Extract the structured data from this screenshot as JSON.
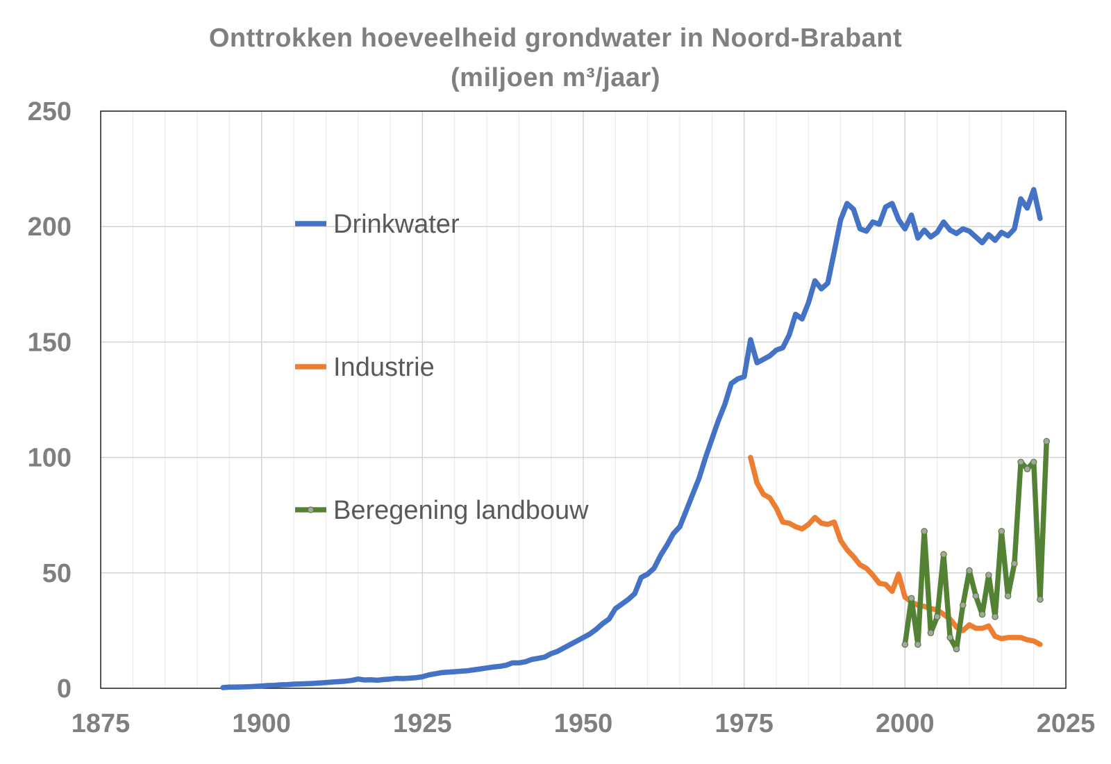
{
  "chart_data": {
    "type": "line",
    "title": "Onttrokken hoeveelheid grondwater in Noord-Brabant",
    "subtitle": "(miljoen m³/jaar)",
    "xlabel": "",
    "ylabel": "",
    "xlim": [
      1875,
      2025
    ],
    "ylim": [
      0,
      250
    ],
    "x_ticks": [
      1875,
      1900,
      1925,
      1950,
      1975,
      2000,
      2025
    ],
    "y_ticks": [
      0,
      50,
      100,
      150,
      200,
      250
    ],
    "grid": true,
    "legend": "inside-left",
    "series": [
      {
        "name": "Drinkwater",
        "color": "#4472c4",
        "markers": false,
        "x": [
          1894,
          1895,
          1896,
          1897,
          1898,
          1899,
          1900,
          1901,
          1902,
          1903,
          1904,
          1905,
          1906,
          1907,
          1908,
          1909,
          1910,
          1911,
          1912,
          1913,
          1914,
          1915,
          1916,
          1917,
          1918,
          1919,
          1920,
          1921,
          1922,
          1923,
          1924,
          1925,
          1926,
          1927,
          1928,
          1929,
          1930,
          1931,
          1932,
          1933,
          1934,
          1935,
          1936,
          1937,
          1938,
          1939,
          1940,
          1941,
          1942,
          1943,
          1944,
          1945,
          1946,
          1947,
          1948,
          1949,
          1950,
          1951,
          1952,
          1953,
          1954,
          1955,
          1956,
          1957,
          1958,
          1959,
          1960,
          1961,
          1962,
          1963,
          1964,
          1965,
          1966,
          1967,
          1968,
          1969,
          1970,
          1971,
          1972,
          1973,
          1974,
          1975,
          1976,
          1977,
          1978,
          1979,
          1980,
          1981,
          1982,
          1983,
          1984,
          1985,
          1986,
          1987,
          1988,
          1989,
          1990,
          1991,
          1992,
          1993,
          1994,
          1995,
          1996,
          1997,
          1998,
          1999,
          2000,
          2001,
          2002,
          2003,
          2004,
          2005,
          2006,
          2007,
          2008,
          2009,
          2010,
          2011,
          2012,
          2013,
          2014,
          2015,
          2016,
          2017,
          2018,
          2019,
          2020,
          2021
        ],
        "values": [
          0.3,
          0.5,
          0.5,
          0.6,
          0.7,
          0.8,
          1.0,
          1.2,
          1.3,
          1.5,
          1.6,
          1.8,
          1.9,
          2.0,
          2.1,
          2.3,
          2.5,
          2.7,
          2.9,
          3.1,
          3.4,
          4.0,
          3.6,
          3.7,
          3.5,
          3.8,
          4.0,
          4.3,
          4.2,
          4.4,
          4.6,
          5.0,
          5.8,
          6.3,
          6.8,
          7.0,
          7.2,
          7.4,
          7.6,
          8.0,
          8.4,
          8.8,
          9.2,
          9.5,
          10.0,
          11.0,
          11.0,
          11.5,
          12.5,
          13.0,
          13.5,
          15.0,
          16.0,
          17.5,
          19.0,
          20.5,
          22.0,
          23.5,
          25.5,
          28.0,
          30.0,
          34.5,
          36.5,
          38.5,
          41.0,
          48.0,
          49.5,
          52.0,
          57.5,
          62.0,
          67.0,
          70.0,
          77.0,
          84.0,
          91.0,
          100.0,
          108.0,
          116.0,
          123.0,
          132.0,
          134.0,
          135.0,
          151.0,
          141.0,
          142.5,
          144.0,
          146.5,
          147.5,
          153.0,
          162.0,
          160.0,
          167.0,
          176.5,
          173.0,
          175.5,
          189.0,
          203.0,
          210.0,
          207.5,
          199.0,
          198.0,
          202.0,
          201.0,
          208.5,
          210.0,
          203.0,
          199.0,
          205.0,
          195.0,
          198.5,
          195.5,
          197.5,
          202.0,
          198.5,
          197.0,
          199.0,
          198.0,
          195.5,
          193.0,
          196.5,
          194.0,
          197.5,
          196.0,
          199.0,
          212.0,
          208.0,
          216.0,
          203.5
        ]
      },
      {
        "name": "Industrie",
        "color": "#ed7d31",
        "markers": false,
        "x": [
          1976,
          1977,
          1978,
          1979,
          1980,
          1981,
          1982,
          1983,
          1984,
          1985,
          1986,
          1987,
          1988,
          1989,
          1990,
          1991,
          1992,
          1993,
          1994,
          1995,
          1996,
          1997,
          1998,
          1999,
          2000,
          2001,
          2002,
          2003,
          2004,
          2005,
          2006,
          2007,
          2008,
          2009,
          2010,
          2011,
          2012,
          2013,
          2014,
          2015,
          2016,
          2017,
          2018,
          2019,
          2020,
          2021
        ],
        "values": [
          100.0,
          89.0,
          84.0,
          82.5,
          78.0,
          72.0,
          71.5,
          70.0,
          69.0,
          71.0,
          74.0,
          71.5,
          71.0,
          72.0,
          64.0,
          60.0,
          57.0,
          53.5,
          52.0,
          49.0,
          45.5,
          45.0,
          42.0,
          49.5,
          39.5,
          37.5,
          36.0,
          35.5,
          34.5,
          34.0,
          32.0,
          30.0,
          26.5,
          25.0,
          27.5,
          26.0,
          26.0,
          27.0,
          22.5,
          21.5,
          22.0,
          22.0,
          22.0,
          21.0,
          20.5,
          19.0
        ]
      },
      {
        "name": "Beregening landbouw",
        "color": "#548235",
        "markers": true,
        "x": [
          2000,
          2001,
          2002,
          2003,
          2004,
          2005,
          2006,
          2007,
          2008,
          2009,
          2010,
          2011,
          2012,
          2013,
          2014,
          2015,
          2016,
          2017,
          2018,
          2019,
          2020,
          2021,
          2022
        ],
        "values": [
          19.0,
          39.0,
          19.0,
          68.0,
          24.0,
          31.0,
          58.0,
          22.0,
          17.0,
          36.0,
          51.0,
          40.0,
          32.0,
          49.0,
          31.0,
          68.0,
          40.0,
          54.0,
          98.0,
          95.0,
          98.0,
          38.5,
          107.0
        ]
      }
    ]
  }
}
